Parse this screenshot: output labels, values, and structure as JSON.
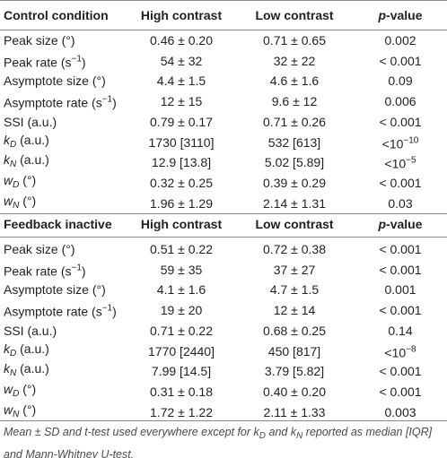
{
  "table": {
    "sections": [
      {
        "header": [
          "Control condition",
          "High contrast",
          "Low contrast",
          [
            {
              "t": "p",
              "s": "i"
            },
            {
              "t": "-value"
            }
          ]
        ],
        "rows": [
          [
            [
              {
                "t": "Peak size (°)"
              }
            ],
            "0.46 ± 0.20",
            "0.71 ± 0.65",
            "0.002"
          ],
          [
            [
              {
                "t": "Peak rate (s"
              },
              {
                "t": "−1",
                "s": "sup"
              },
              {
                "t": ")"
              }
            ],
            "54 ± 32",
            "32 ± 22",
            "< 0.001"
          ],
          [
            [
              {
                "t": "Asymptote size (°)"
              }
            ],
            "4.4 ± 1.5",
            "4.6 ± 1.6",
            "0.09"
          ],
          [
            [
              {
                "t": "Asymptote rate (s"
              },
              {
                "t": "−1",
                "s": "sup"
              },
              {
                "t": ")"
              }
            ],
            "12 ± 15",
            "9.6 ± 12",
            "0.006"
          ],
          [
            [
              {
                "t": "SSI (a.u.)"
              }
            ],
            "0.79 ± 0.17",
            "0.71 ± 0.26",
            "< 0.001"
          ],
          [
            [
              {
                "t": "k",
                "s": "i"
              },
              {
                "t": "D",
                "s": "sub"
              },
              {
                "t": " (a.u.)"
              }
            ],
            "1730 [3110]",
            "532 [613]",
            [
              {
                "t": "<10"
              },
              {
                "t": "−10",
                "s": "sup"
              }
            ]
          ],
          [
            [
              {
                "t": "k",
                "s": "i"
              },
              {
                "t": "N",
                "s": "sub"
              },
              {
                "t": " (a.u.)"
              }
            ],
            "12.9 [13.8]",
            "5.02 [5.89]",
            [
              {
                "t": "<10"
              },
              {
                "t": "−5",
                "s": "sup"
              }
            ]
          ],
          [
            [
              {
                "t": "w",
                "s": "i"
              },
              {
                "t": "D",
                "s": "sub"
              },
              {
                "t": " (°)"
              }
            ],
            "0.32 ± 0.25",
            "0.39 ± 0.29",
            "< 0.001"
          ],
          [
            [
              {
                "t": "w",
                "s": "i"
              },
              {
                "t": "N",
                "s": "sub"
              },
              {
                "t": " (°)"
              }
            ],
            "1.96 ± 1.29",
            "2.14 ± 1.31",
            "0.03"
          ]
        ]
      },
      {
        "header": [
          "Feedback inactive",
          "High contrast",
          "Low contrast",
          [
            {
              "t": "p",
              "s": "i"
            },
            {
              "t": "-value"
            }
          ]
        ],
        "rows": [
          [
            [
              {
                "t": "Peak size (°)"
              }
            ],
            "0.51 ± 0.22",
            "0.72 ± 0.38",
            "< 0.001"
          ],
          [
            [
              {
                "t": "Peak rate (s"
              },
              {
                "t": "−1",
                "s": "sup"
              },
              {
                "t": ")"
              }
            ],
            "59 ± 35",
            "37 ± 27",
            "< 0.001"
          ],
          [
            [
              {
                "t": "Asymptote size (°)"
              }
            ],
            "4.1 ± 1.6",
            "4.7 ± 1.5",
            "0.001"
          ],
          [
            [
              {
                "t": "Asymptote rate (s"
              },
              {
                "t": "−1",
                "s": "sup"
              },
              {
                "t": ")"
              }
            ],
            "19 ± 20",
            "12 ± 14",
            "< 0.001"
          ],
          [
            [
              {
                "t": "SSI (a.u.)"
              }
            ],
            "0.71 ± 0.22",
            "0.68 ± 0.25",
            "0.14"
          ],
          [
            [
              {
                "t": "k",
                "s": "i"
              },
              {
                "t": "D",
                "s": "sub"
              },
              {
                "t": " (a.u.)"
              }
            ],
            "1770 [2440]",
            "450 [817]",
            [
              {
                "t": "<10"
              },
              {
                "t": "−8",
                "s": "sup"
              }
            ]
          ],
          [
            [
              {
                "t": "k",
                "s": "i"
              },
              {
                "t": "N",
                "s": "sub"
              },
              {
                "t": " (a.u.)"
              }
            ],
            "7.99 [14.5]",
            "3.79 [5.82]",
            "< 0.001"
          ],
          [
            [
              {
                "t": "w",
                "s": "i"
              },
              {
                "t": "D",
                "s": "sub"
              },
              {
                "t": " (°)"
              }
            ],
            "0.31 ± 0.18",
            "0.40 ± 0.20",
            "< 0.001"
          ],
          [
            [
              {
                "t": "w",
                "s": "i"
              },
              {
                "t": "N",
                "s": "sub"
              },
              {
                "t": " (°)"
              }
            ],
            "1.72 ± 1.22",
            "2.11 ± 1.33",
            "0.003"
          ]
        ]
      }
    ],
    "footnote": [
      {
        "t": "Mean ± SD and t-test used everywhere except for k"
      },
      {
        "t": "D",
        "s": "sub"
      },
      {
        "t": " and k"
      },
      {
        "t": "N",
        "s": "sub"
      },
      {
        "t": " reported as median [IQR] and Mann-Whitney U-test."
      }
    ]
  }
}
